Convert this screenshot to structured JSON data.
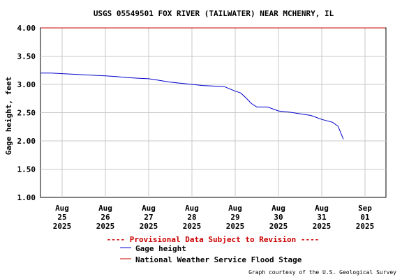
{
  "chart_data": {
    "type": "line",
    "title": "USGS 05549501 FOX RIVER (TAILWATER) NEAR MCHENRY, IL",
    "ylabel": "Gage height, feet",
    "xlabel": "",
    "ylim": [
      1.0,
      4.0
    ],
    "xlim": [
      "2025-08-24 12:00",
      "2025-08-31 12:00"
    ],
    "grid": true,
    "y_ticks": [
      "1.00",
      "1.50",
      "2.00",
      "2.50",
      "3.00",
      "3.50",
      "4.00"
    ],
    "x_ticks": [
      {
        "month": "Aug",
        "day": "25",
        "year": "2025"
      },
      {
        "month": "Aug",
        "day": "26",
        "year": "2025"
      },
      {
        "month": "Aug",
        "day": "27",
        "year": "2025"
      },
      {
        "month": "Aug",
        "day": "28",
        "year": "2025"
      },
      {
        "month": "Aug",
        "day": "29",
        "year": "2025"
      },
      {
        "month": "Aug",
        "day": "30",
        "year": "2025"
      },
      {
        "month": "Aug",
        "day": "31",
        "year": "2025"
      },
      {
        "month": "Sep",
        "day": "01",
        "year": "2025"
      }
    ],
    "provisional_note": "---- Provisional Data Subject to Revision ----",
    "credit": "Graph courtesy of the U.S. Geological Survey",
    "series": [
      {
        "name": "Gage height",
        "color": "#0000cc",
        "points": [
          [
            "2025-08-24 12:00",
            3.2
          ],
          [
            "2025-08-24 18:00",
            3.2
          ],
          [
            "2025-08-25 00:00",
            3.19
          ],
          [
            "2025-08-25 06:00",
            3.18
          ],
          [
            "2025-08-25 12:00",
            3.17
          ],
          [
            "2025-08-25 18:00",
            3.16
          ],
          [
            "2025-08-26 00:00",
            3.15
          ],
          [
            "2025-08-26 06:00",
            3.14
          ],
          [
            "2025-08-26 12:00",
            3.12
          ],
          [
            "2025-08-26 18:00",
            3.11
          ],
          [
            "2025-08-27 00:00",
            3.1
          ],
          [
            "2025-08-27 06:00",
            3.07
          ],
          [
            "2025-08-27 12:00",
            3.04
          ],
          [
            "2025-08-27 18:00",
            3.02
          ],
          [
            "2025-08-28 00:00",
            3.0
          ],
          [
            "2025-08-28 06:00",
            2.98
          ],
          [
            "2025-08-28 12:00",
            2.97
          ],
          [
            "2025-08-28 18:00",
            2.96
          ],
          [
            "2025-08-29 00:00",
            2.88
          ],
          [
            "2025-08-29 03:00",
            2.85
          ],
          [
            "2025-08-29 06:00",
            2.76
          ],
          [
            "2025-08-29 09:00",
            2.66
          ],
          [
            "2025-08-29 12:00",
            2.6
          ],
          [
            "2025-08-29 18:00",
            2.6
          ],
          [
            "2025-08-30 00:00",
            2.53
          ],
          [
            "2025-08-30 06:00",
            2.51
          ],
          [
            "2025-08-30 12:00",
            2.48
          ],
          [
            "2025-08-30 18:00",
            2.45
          ],
          [
            "2025-08-31 00:00",
            2.38
          ],
          [
            "2025-08-31 06:00",
            2.33
          ],
          [
            "2025-08-31 09:00",
            2.26
          ],
          [
            "2025-08-31 12:00",
            2.03
          ]
        ]
      },
      {
        "name": "National Weather Service Flood Stage",
        "color": "#cc0000",
        "points": [
          [
            "2025-08-24 12:00",
            4.0
          ],
          [
            "2025-08-31 12:00",
            4.0
          ]
        ]
      }
    ]
  }
}
